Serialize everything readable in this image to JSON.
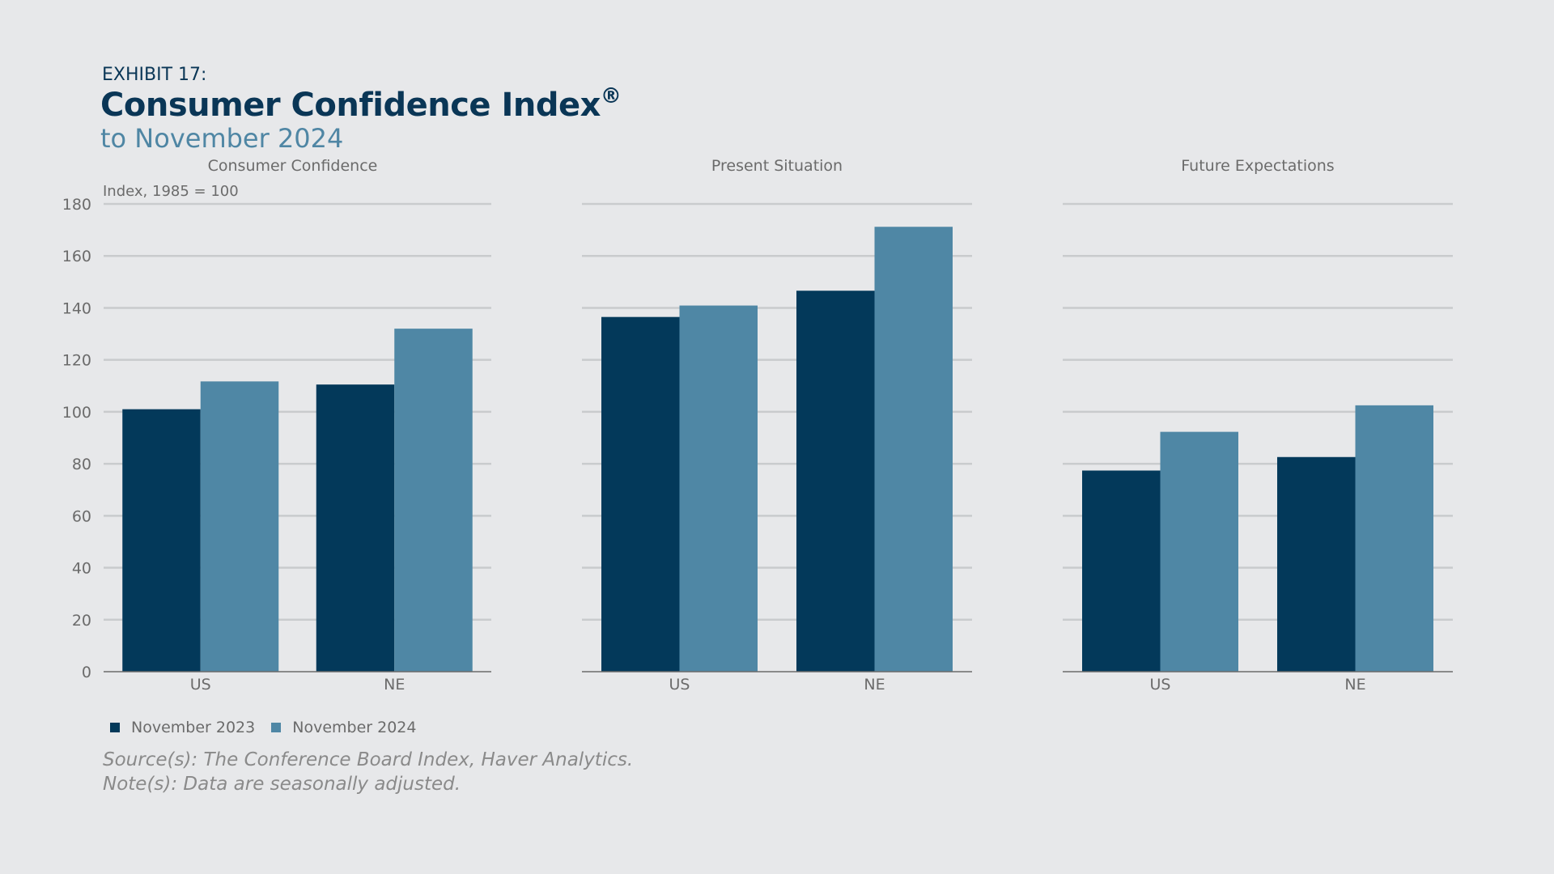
{
  "header": {
    "exhibit": "EXHIBIT 17:",
    "title": "Consumer Confidence Index",
    "title_mark": "®",
    "subtitle": "to November 2024"
  },
  "footnotes": {
    "source": "Source(s): The Conference Board Index, Haver Analytics.",
    "note": "Note(s): Data are seasonally adjusted."
  },
  "chart_data": [
    {
      "type": "bar",
      "title": "Consumer Confidence",
      "ylabel": "Index, 1985 = 100",
      "categories": [
        "US",
        "NE"
      ],
      "series": [
        {
          "name": "November 2023",
          "values": [
            101,
            110.5
          ]
        },
        {
          "name": "November 2024",
          "values": [
            111.7,
            132
          ]
        }
      ],
      "ylim": [
        0,
        180
      ],
      "yticks": [
        0,
        20,
        40,
        60,
        80,
        100,
        120,
        140,
        160,
        180
      ],
      "grid": true
    },
    {
      "type": "bar",
      "title": "Present Situation",
      "categories": [
        "US",
        "NE"
      ],
      "series": [
        {
          "name": "November 2023",
          "values": [
            136.5,
            146.6
          ]
        },
        {
          "name": "November 2024",
          "values": [
            140.9,
            171.2
          ]
        }
      ],
      "ylim": [
        0,
        180
      ],
      "grid": true
    },
    {
      "type": "bar",
      "title": "Future Expectations",
      "categories": [
        "US",
        "NE"
      ],
      "series": [
        {
          "name": "November 2023",
          "values": [
            77.4,
            82.6
          ]
        },
        {
          "name": "November 2024",
          "values": [
            92.3,
            102.5
          ]
        }
      ],
      "ylim": [
        0,
        180
      ],
      "grid": true
    }
  ],
  "legend": {
    "position": "bottom-left",
    "items": [
      {
        "label": "November 2023",
        "color": "#03395a"
      },
      {
        "label": "November 2024",
        "color": "#4f87a5"
      }
    ]
  },
  "colors": {
    "series_2023": "#03395a",
    "series_2024": "#4f87a5",
    "grid": "#c9cbcd",
    "axis": "#6b6b6b",
    "text": "#6b6b6b"
  }
}
